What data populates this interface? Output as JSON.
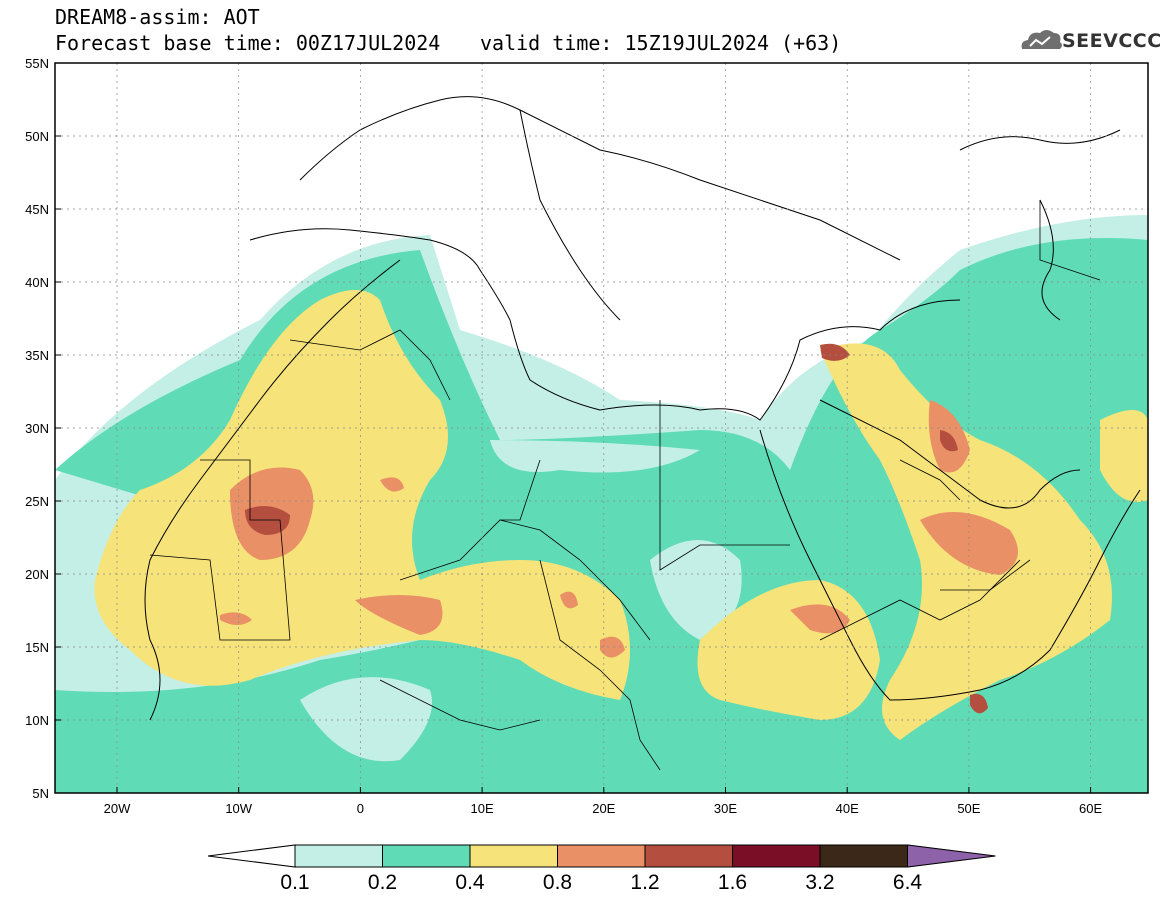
{
  "title_line1": "DREAM8-assim: AOT",
  "title_base": "Forecast base time: 00Z17JUL2024",
  "title_valid": "valid time: 15Z19JUL2024 (+63)",
  "logo_text": "SEEVCCC",
  "logo_icon": "cloud-icon",
  "map": {
    "lat_labels": [
      "55N",
      "50N",
      "45N",
      "40N",
      "35N",
      "30N",
      "25N",
      "20N",
      "15N",
      "10N",
      "5N"
    ],
    "lon_labels": [
      "20W",
      "10W",
      "0",
      "10E",
      "20E",
      "30E",
      "40E",
      "50E",
      "60E"
    ]
  },
  "colorbar": {
    "ticks": [
      "0.1",
      "0.2",
      "0.4",
      "0.8",
      "1.2",
      "1.6",
      "3.2",
      "6.4"
    ],
    "colors": [
      "#c4efe6",
      "#5fdcb5",
      "#f6e37a",
      "#e99066",
      "#b44f3f",
      "#7b0e27",
      "#3b2819",
      "#8d62a8"
    ]
  }
}
